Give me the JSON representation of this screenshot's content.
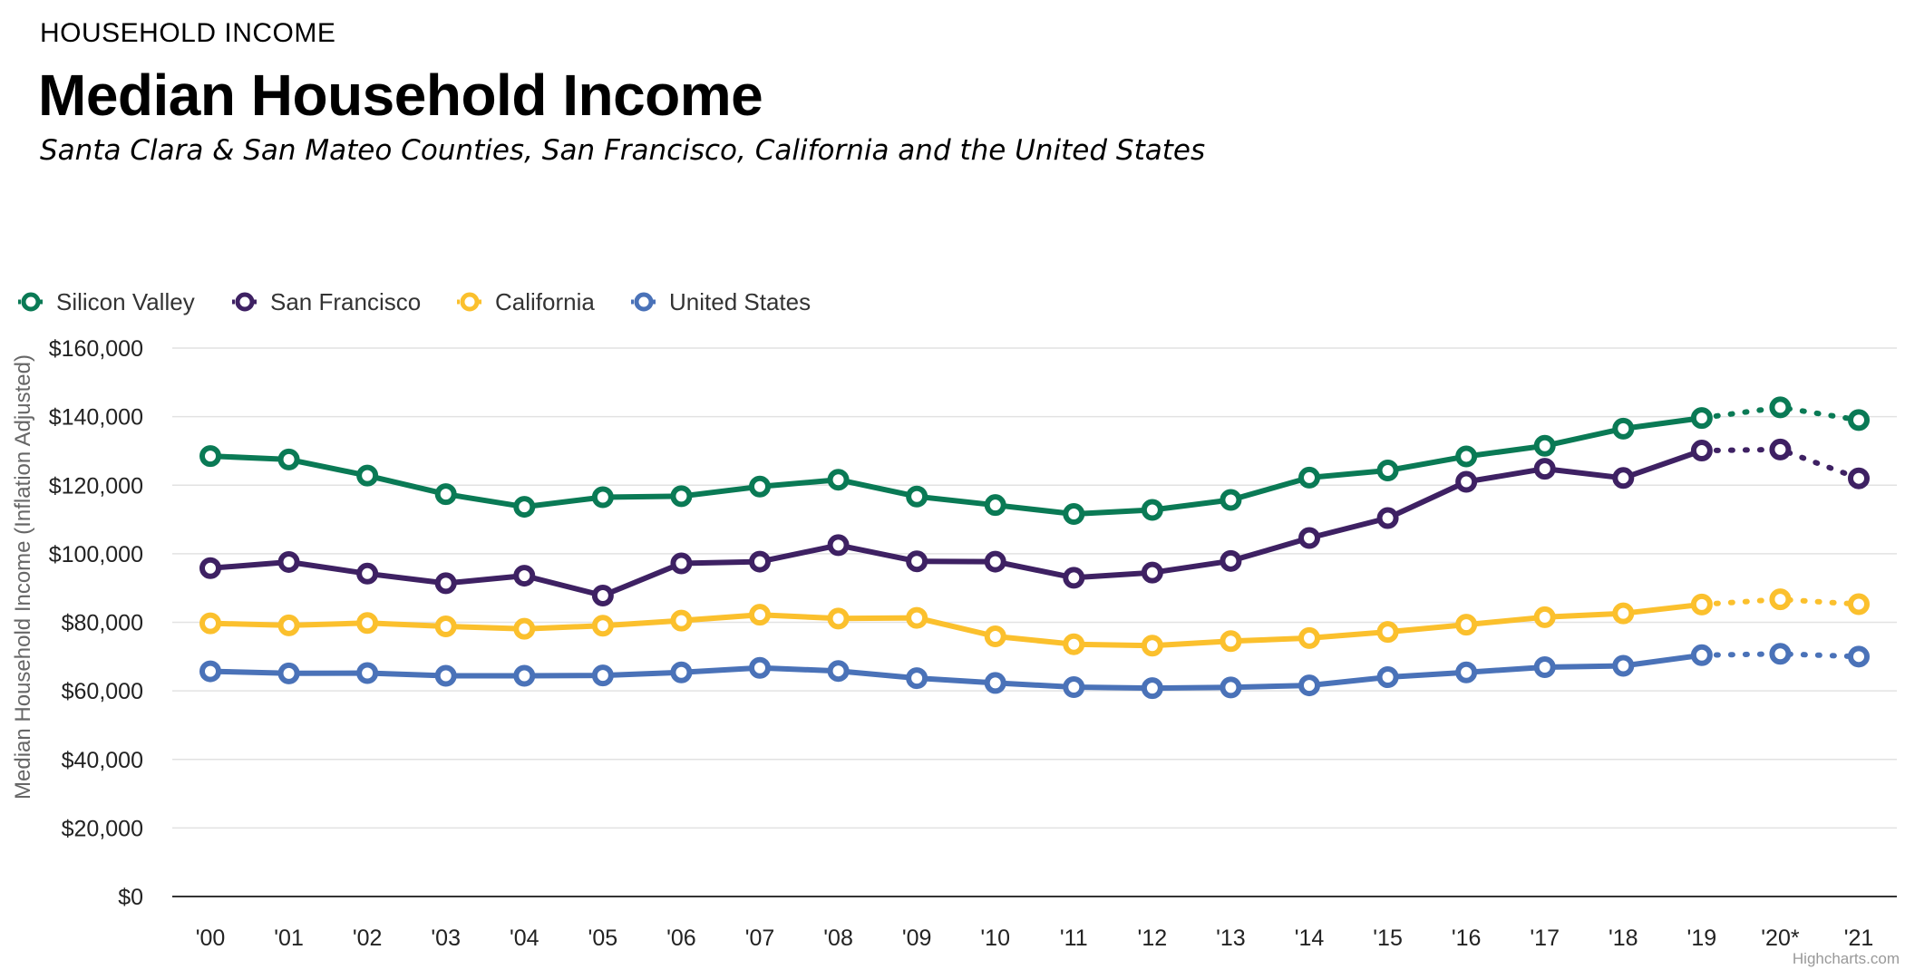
{
  "header": {
    "eyebrow": "HOUSEHOLD INCOME",
    "title": "Median Household Income",
    "subtitle": "Santa Clara & San Mateo Counties, San Francisco, California and the United States"
  },
  "credits": "Highcharts.com",
  "chart_data": {
    "type": "line",
    "x": [
      "'00",
      "'01",
      "'02",
      "'03",
      "'04",
      "'05",
      "'06",
      "'07",
      "'08",
      "'09",
      "'10",
      "'11",
      "'12",
      "'13",
      "'14",
      "'15",
      "'16",
      "'17",
      "'18",
      "'19",
      "'20*",
      "'21"
    ],
    "ylabel": "Median Household Income (Inflation Adjusted)",
    "ylim": [
      0,
      160000
    ],
    "yticks": [
      0,
      20000,
      40000,
      60000,
      80000,
      100000,
      120000,
      140000,
      160000
    ],
    "ytick_labels": [
      "$0",
      "$20,000",
      "$40,000",
      "$60,000",
      "$80,000",
      "$100,000",
      "$120,000",
      "$140,000",
      "$160,000"
    ],
    "grid": true,
    "legend": "top-left",
    "dotted_from_index": 19,
    "series": [
      {
        "name": "Silicon Valley",
        "color": "#0a7a55",
        "values": [
          128500,
          127500,
          122800,
          117400,
          113700,
          116500,
          116800,
          119600,
          121600,
          116700,
          114200,
          111600,
          112800,
          115700,
          122200,
          124300,
          128400,
          131500,
          136500,
          139600,
          142700,
          139000
        ]
      },
      {
        "name": "San Francisco",
        "color": "#3e2163",
        "values": [
          95800,
          97600,
          94200,
          91400,
          93600,
          87800,
          97200,
          97700,
          102500,
          97800,
          97700,
          93000,
          94500,
          97900,
          104600,
          110400,
          121000,
          124800,
          122100,
          130100,
          130400,
          122000
        ]
      },
      {
        "name": "California",
        "color": "#fbc02d",
        "values": [
          79700,
          79100,
          79800,
          78800,
          78100,
          79000,
          80500,
          82200,
          81100,
          81300,
          75900,
          73600,
          73200,
          74500,
          75400,
          77200,
          79300,
          81500,
          82600,
          85200,
          86700,
          85300
        ]
      },
      {
        "name": "United States",
        "color": "#4a72b8",
        "values": [
          65700,
          65100,
          65200,
          64400,
          64400,
          64500,
          65400,
          66700,
          65800,
          63700,
          62300,
          61100,
          60800,
          61000,
          61600,
          64000,
          65400,
          66900,
          67300,
          70400,
          70800,
          70000
        ]
      }
    ]
  }
}
